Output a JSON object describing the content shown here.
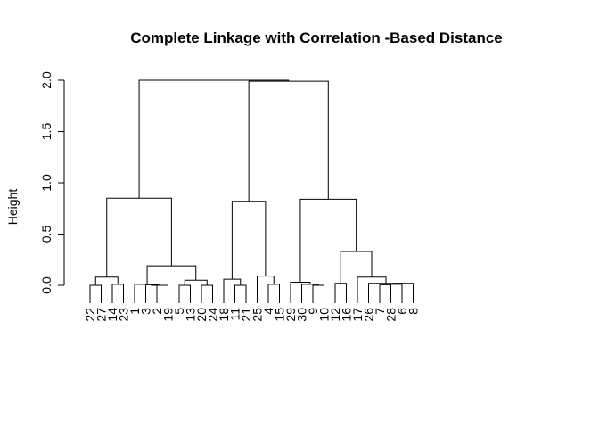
{
  "chart_data": {
    "type": "dendrogram",
    "title": "Complete Linkage with Correlation -Based Distance",
    "ylabel": "Height",
    "xlabel": "",
    "ylim": [
      0,
      2.0
    ],
    "yticks": [
      "0.0",
      "0.5",
      "1.0",
      "1.5",
      "2.0"
    ],
    "yticks_values": [
      0,
      0.5,
      1.0,
      1.5,
      2.0
    ],
    "leaves": [
      "22",
      "27",
      "14",
      "23",
      "1",
      "3",
      "2",
      "19",
      "5",
      "13",
      "20",
      "24",
      "18",
      "11",
      "21",
      "25",
      "4",
      "15",
      "29",
      "30",
      "9",
      "10",
      "12",
      "16",
      "17",
      "26",
      "7",
      "28",
      "6",
      "8"
    ],
    "merges": [
      {
        "a": "L22",
        "b": "L27",
        "height": 0.0
      },
      {
        "a": "L14",
        "b": "L23",
        "height": 0.01
      },
      {
        "a": "m0",
        "b": "m1",
        "height": 0.08
      },
      {
        "a": "L3",
        "b": "L2",
        "height": 0.005
      },
      {
        "a": "m3",
        "b": "L19",
        "height": 0.0
      },
      {
        "a": "L1",
        "b": "m4",
        "height": 0.01
      },
      {
        "a": "L5",
        "b": "L13",
        "height": 0.0
      },
      {
        "a": "L20",
        "b": "L24",
        "height": 0.0
      },
      {
        "a": "m6",
        "b": "m7",
        "height": 0.05
      },
      {
        "a": "m5",
        "b": "m8",
        "height": 0.19
      },
      {
        "a": "m2",
        "b": "m9",
        "height": 0.85
      },
      {
        "a": "L11",
        "b": "L21",
        "height": 0.0
      },
      {
        "a": "L18",
        "b": "m11",
        "height": 0.06
      },
      {
        "a": "L4",
        "b": "L15",
        "height": 0.01
      },
      {
        "a": "L25",
        "b": "m13",
        "height": 0.09
      },
      {
        "a": "m12",
        "b": "m14",
        "height": 0.82
      },
      {
        "a": "L9",
        "b": "L10",
        "height": 0.0
      },
      {
        "a": "L30",
        "b": "m16",
        "height": 0.01
      },
      {
        "a": "L29",
        "b": "m17",
        "height": 0.03
      },
      {
        "a": "L12",
        "b": "L16",
        "height": 0.02
      },
      {
        "a": "L7",
        "b": "L28",
        "height": 0.005
      },
      {
        "a": "m20",
        "b": "L6",
        "height": 0.01
      },
      {
        "a": "m21",
        "b": "L8",
        "height": 0.02
      },
      {
        "a": "L26",
        "b": "m22",
        "height": 0.02
      },
      {
        "a": "L17",
        "b": "m23",
        "height": 0.08
      },
      {
        "a": "m19",
        "b": "m24",
        "height": 0.33
      },
      {
        "a": "m18",
        "b": "m25",
        "height": 0.84
      },
      {
        "a": "m15",
        "b": "m26",
        "height": 1.99
      },
      {
        "a": "m10",
        "b": "m27",
        "height": 2.0
      }
    ],
    "grid": false,
    "legend": "none"
  }
}
